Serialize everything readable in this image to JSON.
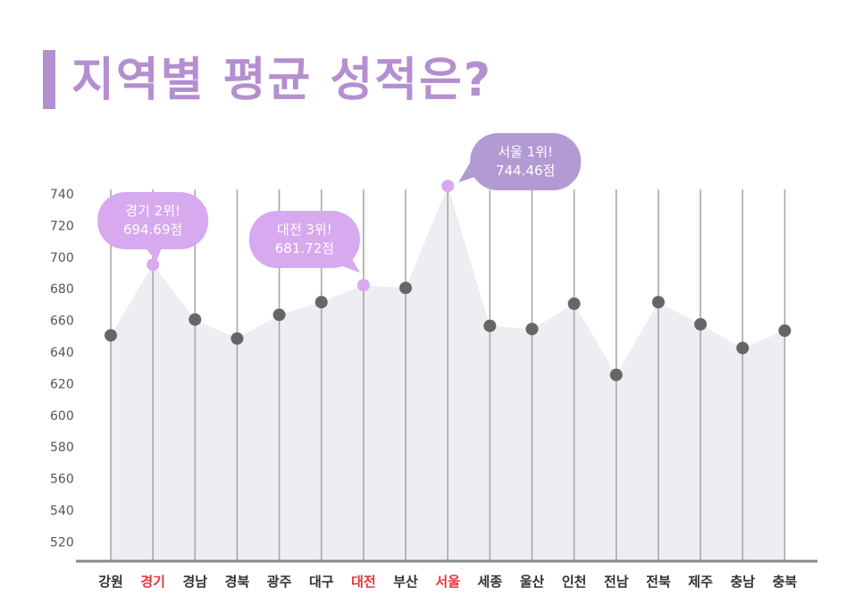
{
  "title": "지역별 평균 성적은?",
  "colors": {
    "accent": "#b48fd0",
    "highlight_point": "#d7a9ef",
    "point": "#666666",
    "area": "#efedf1",
    "gridline": "#a8a8a8",
    "axis": "#8a8a8a",
    "label": "#333333",
    "label_highlight": "#e8343a",
    "bubble_light": "#d7a9ef",
    "bubble_dark": "#b39ad2"
  },
  "chart_data": {
    "type": "line",
    "title": "지역별 평균 성적은?",
    "xlabel": "",
    "ylabel": "",
    "ylim": [
      510,
      745
    ],
    "yticks": [
      520,
      540,
      560,
      580,
      600,
      620,
      640,
      660,
      680,
      700,
      720,
      740
    ],
    "categories": [
      "강원",
      "경기",
      "경남",
      "경북",
      "광주",
      "대구",
      "대전",
      "부산",
      "서울",
      "세종",
      "울산",
      "인천",
      "전남",
      "전북",
      "제주",
      "충남",
      "충북"
    ],
    "values": [
      650,
      694.69,
      660,
      648,
      663,
      671,
      681.72,
      680,
      744.46,
      656,
      654,
      670,
      625,
      671,
      657,
      642,
      653
    ],
    "highlight_categories": [
      "경기",
      "대전",
      "서울"
    ],
    "annotations": [
      {
        "category": "경기",
        "line1": "경기 2위!",
        "line2": "694.69점",
        "style": "light"
      },
      {
        "category": "대전",
        "line1": "대전 3위!",
        "line2": "681.72점",
        "style": "light"
      },
      {
        "category": "서울",
        "line1": "서울 1위!",
        "line2": "744.46점",
        "style": "dark"
      }
    ]
  }
}
